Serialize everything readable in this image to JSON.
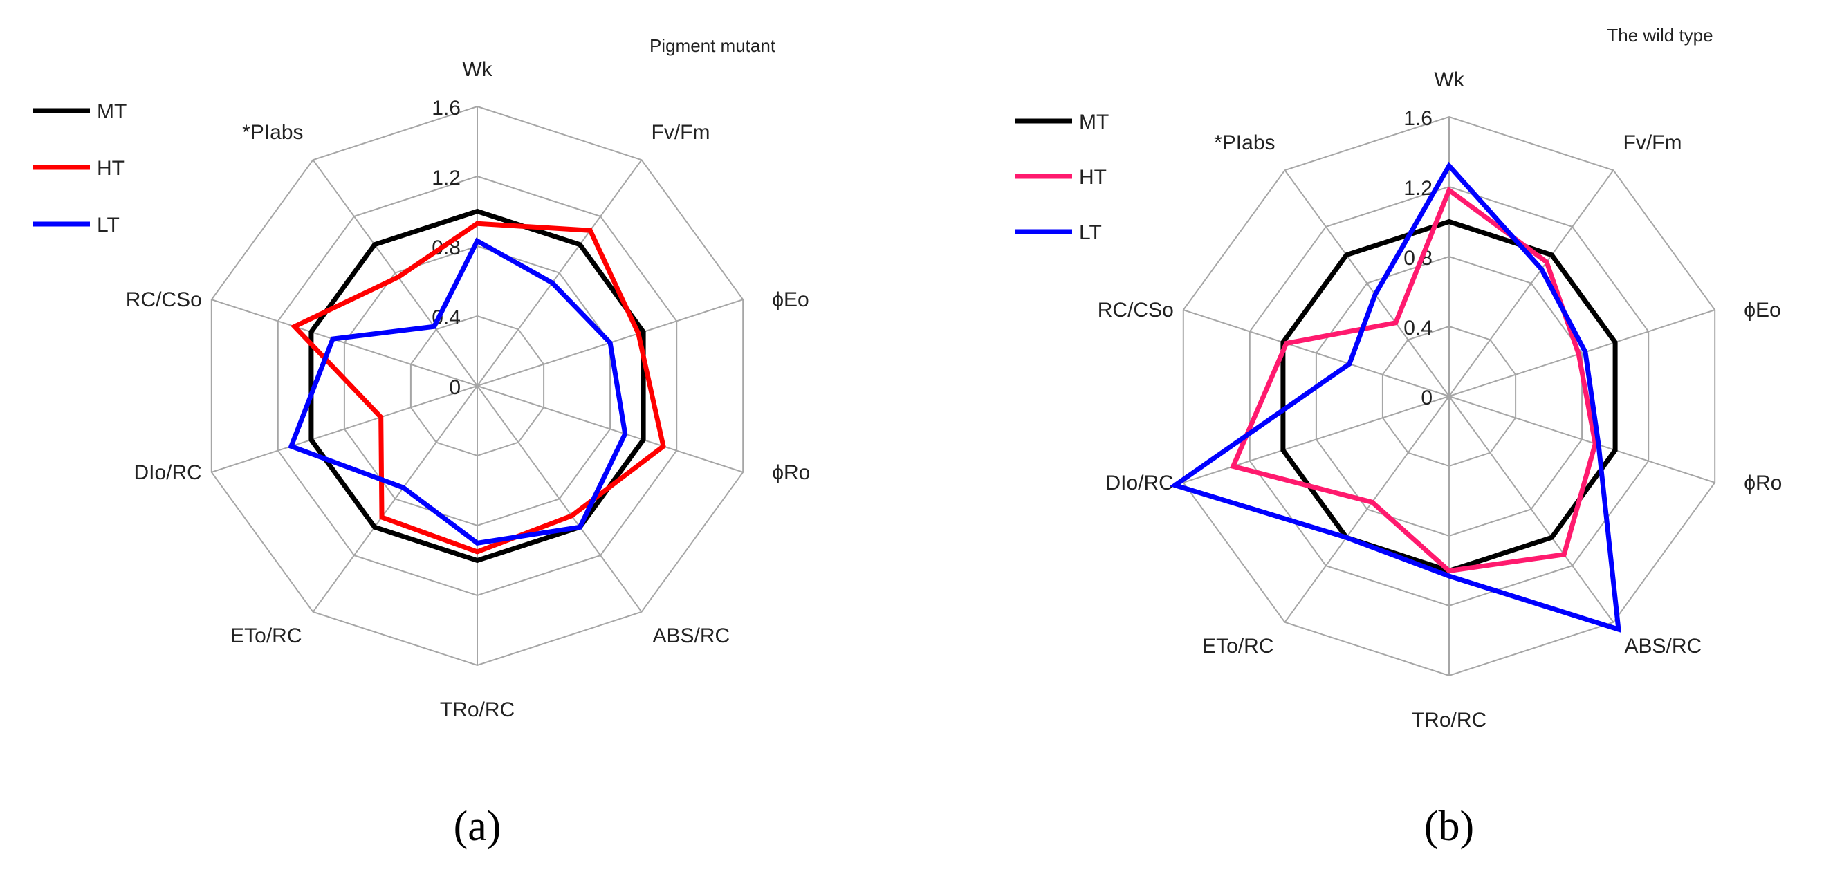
{
  "chart_data": [
    {
      "type": "radar",
      "panel_label": "(a)",
      "title": "Pigment mutant",
      "axes": [
        "Wk",
        "Fv/Fm",
        "ϕEo",
        "ϕRo",
        "ABS/RC",
        "TRo/RC",
        "ETo/RC",
        "DIo/RC",
        "RC/CSo",
        "*PIabs"
      ],
      "ticks": [
        "0",
        "0.4",
        "0.8",
        "1.2",
        "1.6"
      ],
      "tick_values": [
        0,
        0.4,
        0.8,
        1.2,
        1.6
      ],
      "range": [
        0,
        1.6
      ],
      "legend": [
        {
          "name": "MT",
          "color": "#000000"
        },
        {
          "name": "HT",
          "color": "#ff0000"
        },
        {
          "name": "LT",
          "color": "#0000ff"
        }
      ],
      "series": [
        {
          "name": "MT",
          "color": "#000000",
          "values": [
            1.0,
            1.0,
            1.0,
            1.0,
            1.0,
            1.0,
            1.0,
            1.0,
            1.0,
            1.0
          ]
        },
        {
          "name": "HT",
          "color": "#ff0000",
          "values": [
            0.93,
            1.1,
            0.97,
            1.12,
            0.92,
            0.95,
            0.93,
            0.58,
            1.1,
            0.77
          ]
        },
        {
          "name": "LT",
          "color": "#0000ff",
          "values": [
            0.83,
            0.73,
            0.8,
            0.89,
            1.0,
            0.9,
            0.72,
            1.12,
            0.87,
            0.42
          ]
        }
      ]
    },
    {
      "type": "radar",
      "panel_label": "(b)",
      "title": "The wild type",
      "axes": [
        "Wk",
        "Fv/Fm",
        "ϕEo",
        "ϕRo",
        "ABS/RC",
        "TRo/RC",
        "ETo/RC",
        "DIo/RC",
        "RC/CSo",
        "*PIabs"
      ],
      "ticks": [
        "0",
        "0.4",
        "0.8",
        "1.2",
        "1.6"
      ],
      "tick_values": [
        0,
        0.4,
        0.8,
        1.2,
        1.6
      ],
      "range": [
        0,
        1.6
      ],
      "legend": [
        {
          "name": "MT",
          "color": "#000000"
        },
        {
          "name": "HT",
          "color": "#ff1a6e"
        },
        {
          "name": "LT",
          "color": "#0000ff"
        }
      ],
      "series": [
        {
          "name": "MT",
          "color": "#000000",
          "values": [
            1.0,
            1.0,
            1.0,
            1.0,
            1.0,
            1.0,
            1.0,
            1.0,
            1.0,
            1.0
          ]
        },
        {
          "name": "HT",
          "color": "#ff1a6e",
          "values": [
            1.18,
            0.95,
            0.78,
            0.88,
            1.12,
            1.0,
            0.75,
            1.3,
            0.98,
            0.52
          ]
        },
        {
          "name": "LT",
          "color": "#0000ff",
          "values": [
            1.32,
            0.9,
            0.82,
            0.9,
            1.65,
            1.03,
            1.0,
            1.65,
            0.6,
            0.72
          ]
        }
      ]
    }
  ]
}
